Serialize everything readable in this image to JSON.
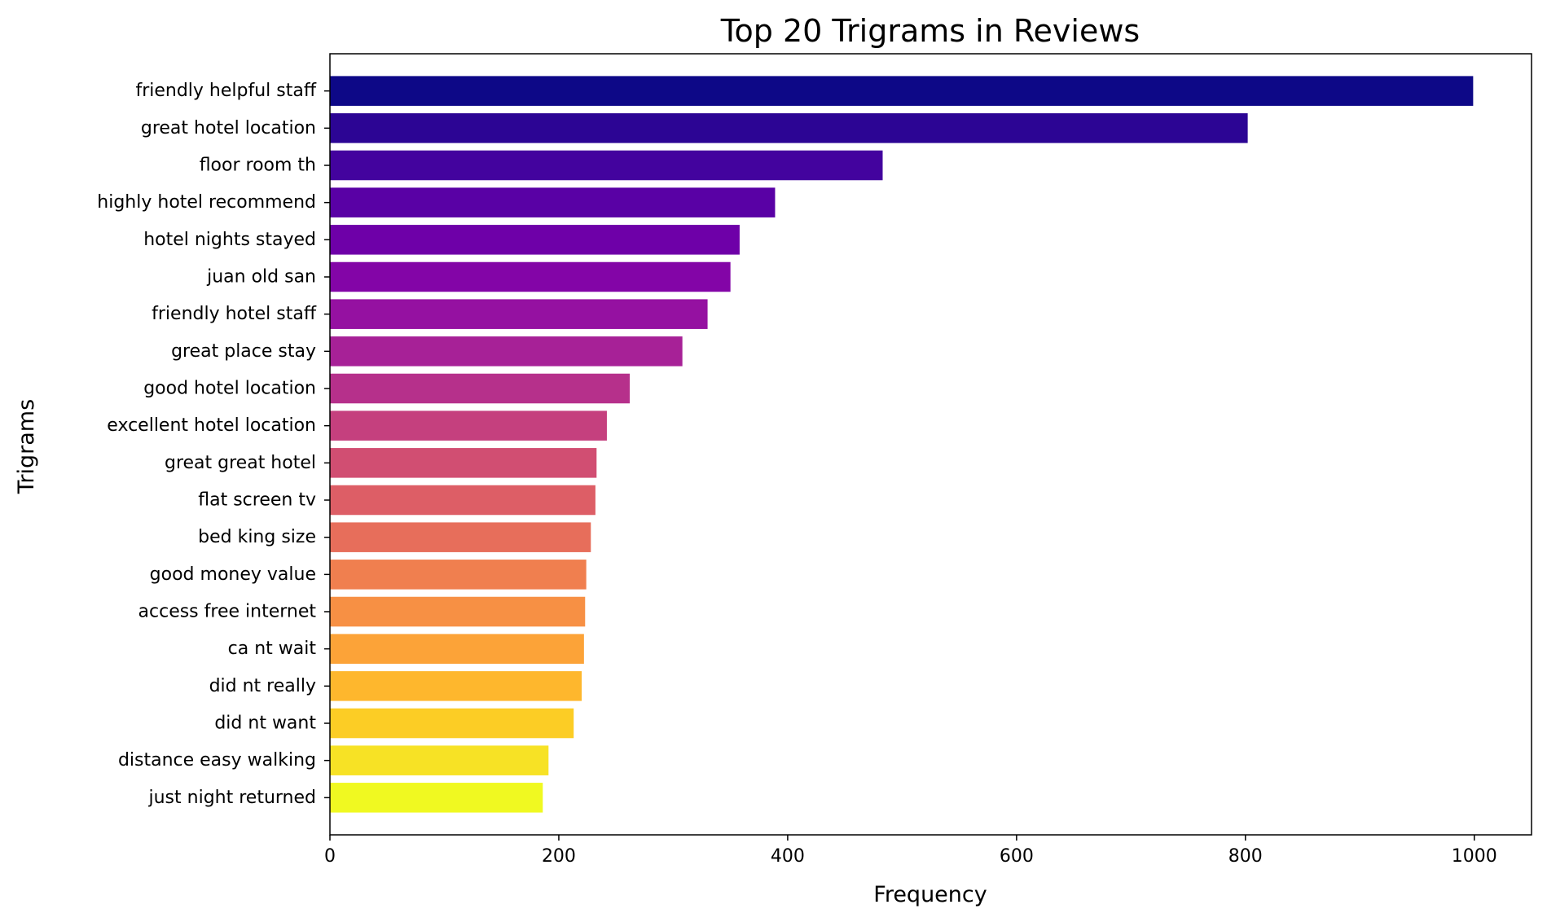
{
  "chart_data": {
    "type": "bar",
    "orientation": "horizontal",
    "title": "Top 20 Trigrams in Reviews",
    "xlabel": "Frequency",
    "ylabel": "Trigrams",
    "xlim": [
      0,
      1050
    ],
    "xticks": [
      0,
      200,
      400,
      600,
      800,
      1000
    ],
    "grid": false,
    "colormap": "plasma",
    "categories": [
      "friendly helpful staff",
      "great hotel location",
      "floor room th",
      "highly hotel recommend",
      "hotel nights stayed",
      "juan old san",
      "friendly hotel staff",
      "great place stay",
      "good hotel location",
      "excellent hotel location",
      "great great hotel",
      "flat screen tv",
      "bed king size",
      "good money value",
      "access free internet",
      "ca nt wait",
      "did nt really",
      "did nt want",
      "distance easy walking",
      "just night returned"
    ],
    "values": [
      999,
      802,
      483,
      389,
      358,
      350,
      330,
      308,
      262,
      242,
      233,
      232,
      228,
      224,
      223,
      222,
      220,
      213,
      191,
      186
    ],
    "colors": [
      "#0d0887",
      "#2c0594",
      "#43039e",
      "#5901a5",
      "#6e00a8",
      "#8305a7",
      "#9511a1",
      "#a72197",
      "#b6308b",
      "#c5407e",
      "#d14e72",
      "#dd5e66",
      "#e76e5b",
      "#f07f4f",
      "#f79044",
      "#fca338",
      "#feb72d",
      "#fccd25",
      "#f7e225",
      "#f0f921"
    ]
  }
}
